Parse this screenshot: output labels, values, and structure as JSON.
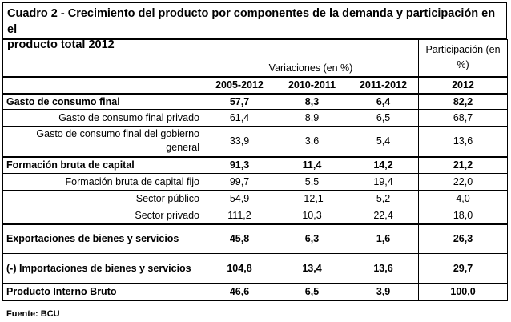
{
  "title_line1": "Cuadro 2 - Crecimiento del producto por componentes de la demanda y participación en el",
  "title_line2": "producto total 2012",
  "header": {
    "variaciones": "Variaciones (en %)",
    "participacion": "Participación (en %)",
    "years": [
      "2005-2012",
      "2010-2011",
      "2011-2012",
      "2012"
    ]
  },
  "rows": [
    {
      "label": "Gasto de consumo final",
      "values": [
        "57,7",
        "8,3",
        "6,4",
        "82,2"
      ]
    },
    {
      "label": "Gasto de consumo final privado",
      "values": [
        "61,4",
        "8,9",
        "6,5",
        "68,7"
      ]
    },
    {
      "label": "Gasto de consumo final del gobierno general",
      "values": [
        "33,9",
        "3,6",
        "5,4",
        "13,6"
      ]
    },
    {
      "label": "Formación bruta de capital",
      "values": [
        "91,3",
        "11,4",
        "14,2",
        "21,2"
      ]
    },
    {
      "label": "Formación bruta de capital fijo",
      "values": [
        "99,7",
        "5,5",
        "19,4",
        "22,0"
      ]
    },
    {
      "label": "Sector público",
      "values": [
        "54,9",
        "-12,1",
        "5,2",
        "4,0"
      ]
    },
    {
      "label": "Sector privado",
      "values": [
        "111,2",
        "10,3",
        "22,4",
        "18,0"
      ]
    },
    {
      "label": "Exportaciones de bienes y servicios",
      "values": [
        "45,8",
        "6,3",
        "1,6",
        "26,3"
      ]
    },
    {
      "label": "(-) Importaciones de bienes y servicios",
      "values": [
        "104,8",
        "13,4",
        "13,6",
        "29,7"
      ]
    },
    {
      "label": "Producto Interno Bruto",
      "values": [
        "46,6",
        "6,5",
        "3,9",
        "100,0"
      ]
    }
  ],
  "source": "Fuente: BCU"
}
